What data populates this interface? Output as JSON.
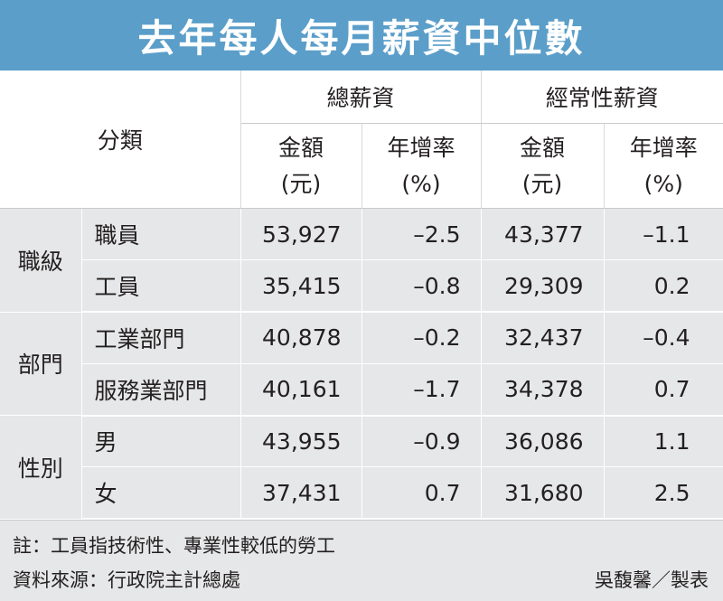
{
  "title": "去年每人每月薪資中位數",
  "header": {
    "category": "分類",
    "group_total": "總薪資",
    "group_regular": "經常性薪資",
    "amount_label": "金額",
    "amount_unit": "(元)",
    "growth_label": "年增率",
    "growth_unit": "(%)"
  },
  "groups": [
    {
      "name": "職級",
      "rows": [
        {
          "item": "職員",
          "total_amount": "53,927",
          "total_growth": "–2.5",
          "regular_amount": "43,377",
          "regular_growth": "–1.1"
        },
        {
          "item": "工員",
          "total_amount": "35,415",
          "total_growth": "–0.8",
          "regular_amount": "29,309",
          "regular_growth": "0.2"
        }
      ]
    },
    {
      "name": "部門",
      "rows": [
        {
          "item": "工業部門",
          "total_amount": "40,878",
          "total_growth": "–0.2",
          "regular_amount": "32,437",
          "regular_growth": "–0.4"
        },
        {
          "item": "服務業部門",
          "total_amount": "40,161",
          "total_growth": "–1.7",
          "regular_amount": "34,378",
          "regular_growth": "0.7"
        }
      ]
    },
    {
      "name": "性別",
      "rows": [
        {
          "item": "男",
          "total_amount": "43,955",
          "total_growth": "–0.9",
          "regular_amount": "36,086",
          "regular_growth": "1.1"
        },
        {
          "item": "女",
          "total_amount": "37,431",
          "total_growth": "0.7",
          "regular_amount": "31,680",
          "regular_growth": "2.5"
        }
      ]
    }
  ],
  "footer": {
    "note": "註：工員指技術性、專業性較低的勞工",
    "source": "資料來源：行政院主計總處",
    "credit": "吳馥馨／製表"
  }
}
